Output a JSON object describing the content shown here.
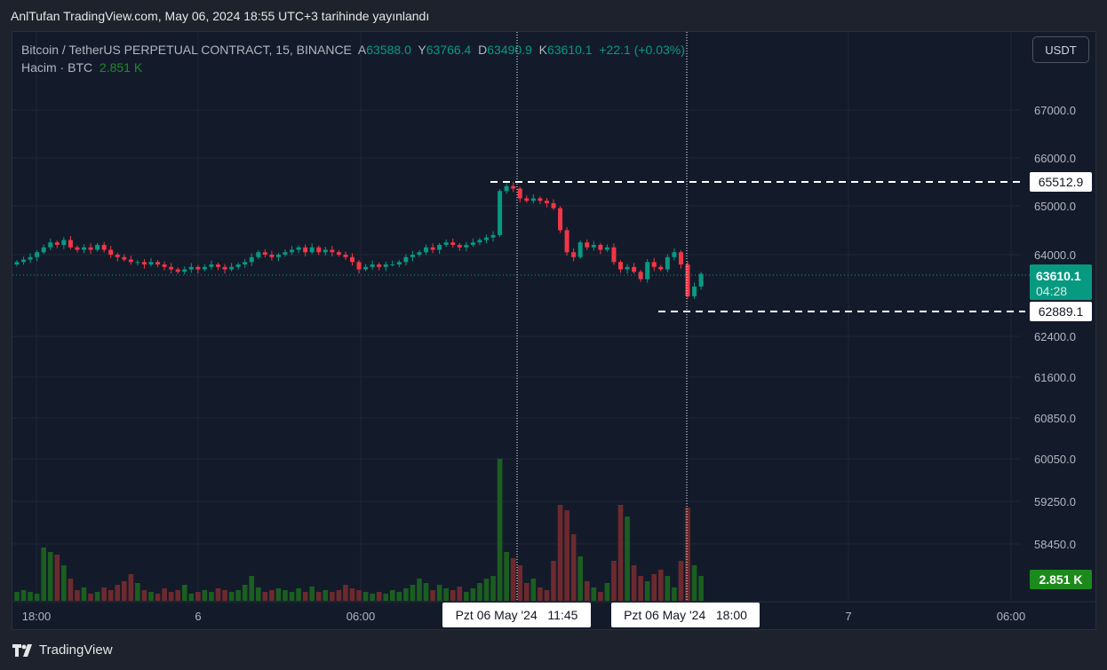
{
  "title": "AnlTufan TradingView.com, May 06, 2024 18:55 UTC+3 tarihinde yayınlandı",
  "legend": {
    "symbol": "Bitcoin / TetherUS PERPETUAL CONTRACT, 15, BINANCE",
    "o_label": "A",
    "o": "63588.0",
    "h_label": "Y",
    "h": "63766.4",
    "l_label": "D",
    "l": "63490.9",
    "c_label": "K",
    "c": "63610.1",
    "change": "+22.1 (+0.03%)",
    "volume_label": "Hacim · BTC",
    "volume": "2.851 K"
  },
  "currency_button": "USDT",
  "footer": "TradingView",
  "colors": {
    "up": "#089981",
    "down": "#f23645",
    "vol_up": "#1b5e20",
    "vol_down": "#6d2a2e",
    "bg": "#131b2b"
  },
  "chart_data": {
    "type": "candlestick",
    "interval": "15",
    "price_ticks": [
      "67000.0",
      "66000.0",
      "65000.0",
      "64000.0",
      "62400.0",
      "61600.0",
      "60850.0",
      "60050.0",
      "59250.0",
      "58450.0"
    ],
    "price_tick_values": [
      67000,
      66000,
      65000,
      64000,
      62400,
      61600,
      60850,
      60050,
      59250,
      58450
    ],
    "time_labels": [
      "18:00",
      "6",
      "06:00",
      "7",
      "06:00"
    ],
    "crosshair_labels": [
      "Pzt 06 May '24   11:45",
      "Pzt 06 May '24   18:00"
    ],
    "markers": {
      "high": "65512.9",
      "low": "62889.1",
      "last_price": "63610.1",
      "countdown": "04:28",
      "last_volume": "2.851 K"
    },
    "first_open": 63800,
    "closes": [
      63850,
      63900,
      63950,
      64050,
      64150,
      64250,
      64200,
      64300,
      64150,
      64100,
      64150,
      64100,
      64200,
      64100,
      64000,
      63950,
      63900,
      63850,
      63850,
      63800,
      63850,
      63800,
      63750,
      63700,
      63650,
      63700,
      63750,
      63700,
      63750,
      63800,
      63750,
      63700,
      63750,
      63800,
      63850,
      63950,
      64050,
      64000,
      63950,
      64000,
      64050,
      64100,
      64150,
      64050,
      64150,
      64050,
      64100,
      64050,
      64000,
      63950,
      63850,
      63700,
      63750,
      63800,
      63750,
      63800,
      63800,
      63850,
      63950,
      64000,
      64050,
      64150,
      64100,
      64200,
      64250,
      64200,
      64150,
      64200,
      64250,
      64300,
      64350,
      64400,
      65300,
      65400,
      65350,
      65150,
      65100,
      65150,
      65100,
      65050,
      64950,
      64500,
      64050,
      63950,
      64250,
      64150,
      64200,
      64100,
      64150,
      63850,
      63700,
      63750,
      63650,
      63500,
      63850,
      63750,
      63700,
      63950,
      64050,
      63800,
      63150,
      63350,
      63610
    ],
    "volumes": [
      10,
      12,
      10,
      8,
      60,
      55,
      52,
      40,
      25,
      12,
      15,
      8,
      10,
      15,
      12,
      18,
      22,
      30,
      20,
      12,
      10,
      8,
      14,
      10,
      12,
      18,
      8,
      10,
      12,
      10,
      14,
      12,
      10,
      12,
      18,
      28,
      15,
      10,
      12,
      14,
      12,
      10,
      14,
      10,
      16,
      10,
      12,
      10,
      12,
      18,
      14,
      12,
      10,
      8,
      10,
      8,
      12,
      10,
      14,
      18,
      25,
      20,
      12,
      18,
      14,
      12,
      16,
      10,
      14,
      20,
      25,
      28,
      160,
      55,
      48,
      40,
      20,
      25,
      15,
      12,
      45,
      108,
      102,
      75,
      50,
      22,
      15,
      10,
      20,
      45,
      108,
      95,
      40,
      28,
      22,
      30,
      35,
      28,
      15,
      45,
      105,
      40,
      28
    ]
  }
}
